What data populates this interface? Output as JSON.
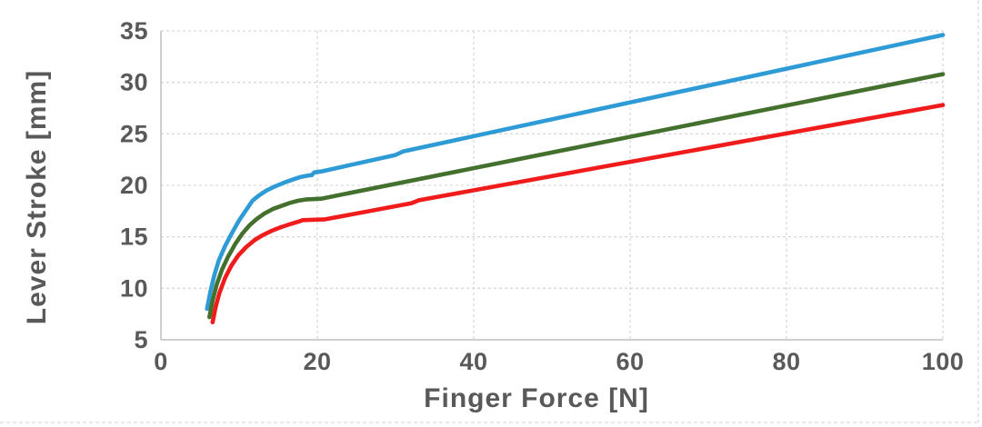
{
  "chart_data": {
    "type": "line",
    "title": "",
    "xlabel": "Finger Force [N]",
    "ylabel": "Lever Stroke [mm]",
    "xlim": [
      0,
      100
    ],
    "ylim": [
      5,
      35
    ],
    "x_ticks": [
      0,
      20,
      40,
      60,
      80,
      100
    ],
    "y_ticks": [
      5,
      10,
      15,
      20,
      25,
      30,
      35
    ],
    "grid": "dashed-light-gray-both-axes",
    "legend": "none",
    "series": [
      {
        "name": "upper-curve-blue",
        "color": "#2E9BD6",
        "points": [
          [
            5.9,
            8.0
          ],
          [
            6.3,
            9.6
          ],
          [
            6.8,
            11.2
          ],
          [
            7.4,
            12.7
          ],
          [
            8.2,
            14.1
          ],
          [
            9.1,
            15.4
          ],
          [
            10.0,
            16.6
          ],
          [
            10.9,
            17.6
          ],
          [
            11.7,
            18.5
          ],
          [
            12.5,
            19.0
          ],
          [
            13.5,
            19.5
          ],
          [
            14.6,
            19.9
          ],
          [
            15.7,
            20.25
          ],
          [
            16.8,
            20.55
          ],
          [
            17.8,
            20.8
          ],
          [
            18.8,
            20.95
          ],
          [
            19.3,
            21.0
          ],
          [
            19.6,
            21.25
          ],
          [
            20.5,
            21.35
          ],
          [
            30,
            22.95
          ],
          [
            31,
            23.3
          ],
          [
            100,
            34.6
          ]
        ]
      },
      {
        "name": "middle-curve-green",
        "color": "#44702D",
        "points": [
          [
            6.2,
            7.2
          ],
          [
            6.6,
            8.8
          ],
          [
            7.1,
            10.3
          ],
          [
            7.8,
            11.8
          ],
          [
            8.6,
            13.1
          ],
          [
            9.5,
            14.3
          ],
          [
            10.4,
            15.3
          ],
          [
            11.3,
            16.1
          ],
          [
            12.2,
            16.7
          ],
          [
            13.2,
            17.25
          ],
          [
            14.3,
            17.7
          ],
          [
            15.4,
            18.0
          ],
          [
            16.5,
            18.3
          ],
          [
            17.5,
            18.5
          ],
          [
            18.5,
            18.62
          ],
          [
            20.5,
            18.7
          ],
          [
            100,
            30.8
          ]
        ]
      },
      {
        "name": "lower-curve-red",
        "color": "#F01B1B",
        "points": [
          [
            6.6,
            6.7
          ],
          [
            7.0,
            8.2
          ],
          [
            7.5,
            9.6
          ],
          [
            8.2,
            11.0
          ],
          [
            9.0,
            12.2
          ],
          [
            9.9,
            13.2
          ],
          [
            10.9,
            14.0
          ],
          [
            12.0,
            14.7
          ],
          [
            13.1,
            15.2
          ],
          [
            14.2,
            15.6
          ],
          [
            15.4,
            15.95
          ],
          [
            16.6,
            16.25
          ],
          [
            17.7,
            16.5
          ],
          [
            18.1,
            16.62
          ],
          [
            21.0,
            16.7
          ],
          [
            32,
            18.25
          ],
          [
            33,
            18.55
          ],
          [
            100,
            27.8
          ]
        ]
      }
    ]
  },
  "axes": {
    "x_title": "Finger Force [N]",
    "y_title": "Lever Stroke [mm]",
    "x_tick_labels": [
      "0",
      "20",
      "40",
      "60",
      "80",
      "100"
    ],
    "y_tick_labels": [
      "5",
      "10",
      "15",
      "20",
      "25",
      "30",
      "35"
    ]
  },
  "colors": {
    "background": "#FFFFFF",
    "text": "#595959",
    "gridline": "#D9D9D9",
    "spine": "#BFBFBF",
    "chart_border": "#D9D9D9",
    "series_blue": "#2E9BD6",
    "series_green": "#44702D",
    "series_red": "#F01B1B"
  }
}
